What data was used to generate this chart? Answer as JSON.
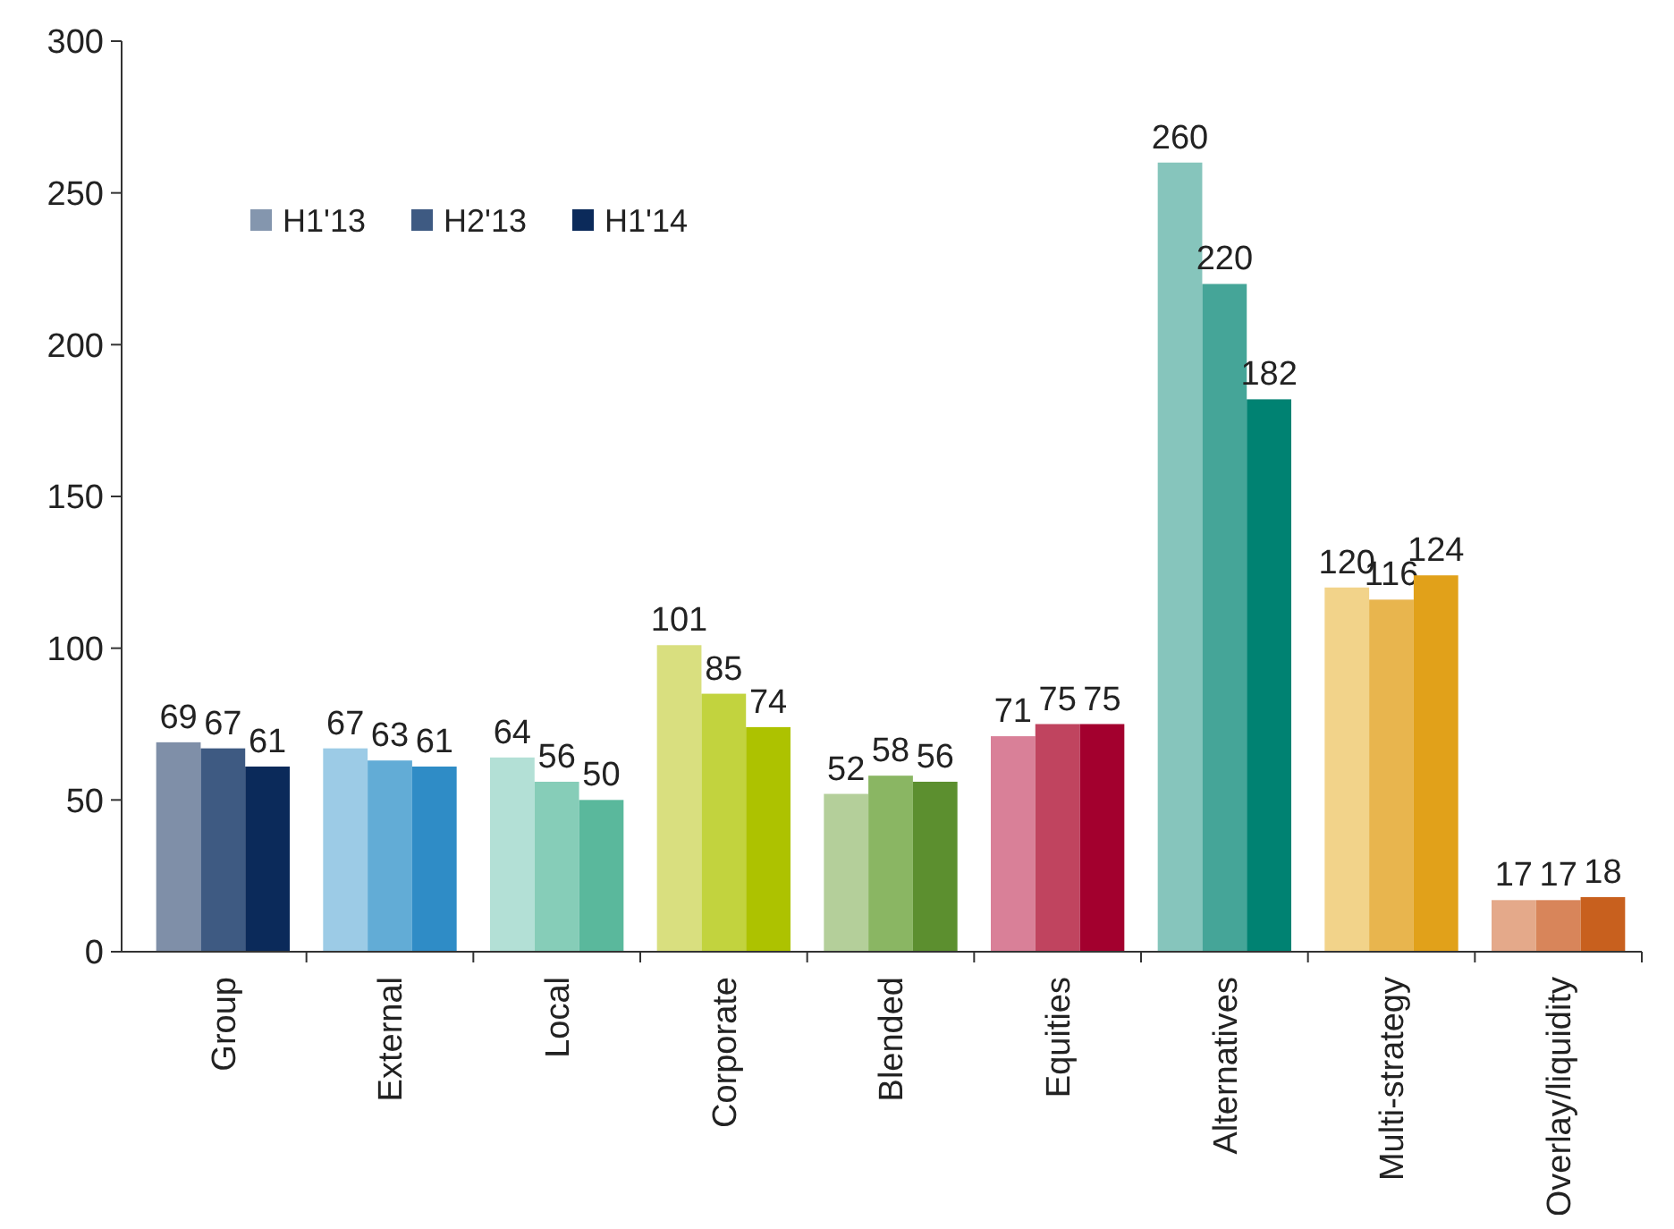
{
  "chart_data": {
    "type": "bar",
    "categories": [
      "Group",
      "External",
      "Local",
      "Corporate",
      "Blended",
      "Equities",
      "Alternatives",
      "Multi-strategy",
      "Overlay/liquidity"
    ],
    "series": [
      {
        "name": "H1'13",
        "color": "#8496ae",
        "values": [
          69,
          67,
          64,
          101,
          52,
          71,
          260,
          120,
          17
        ],
        "colors": [
          "#7f8fa8",
          "#9ccbe6",
          "#b3e0d6",
          "#d9df7f",
          "#b4cf9a",
          "#d98098",
          "#86c5bc",
          "#f2d38a",
          "#e4a98a"
        ]
      },
      {
        "name": "H2'13",
        "color": "#3e5a82",
        "values": [
          67,
          63,
          56,
          85,
          58,
          75,
          220,
          116,
          17
        ],
        "colors": [
          "#3e5a82",
          "#62acd6",
          "#86cdb8",
          "#c2d33e",
          "#8ab663",
          "#c0445f",
          "#45a598",
          "#e8b54e",
          "#d8855a"
        ]
      },
      {
        "name": "H1'14",
        "color": "#0b2a5a",
        "values": [
          61,
          61,
          50,
          74,
          56,
          75,
          182,
          124,
          18
        ],
        "colors": [
          "#0b2a5a",
          "#2f8cc6",
          "#5ab89c",
          "#adc200",
          "#5c8f2f",
          "#a3002e",
          "#008272",
          "#e1a11a",
          "#c8601e"
        ]
      }
    ],
    "ylim": [
      0,
      300
    ],
    "yticks": [
      0,
      50,
      100,
      150,
      200,
      250,
      300
    ],
    "data_labels": true,
    "legend": "top left",
    "grid": false
  }
}
